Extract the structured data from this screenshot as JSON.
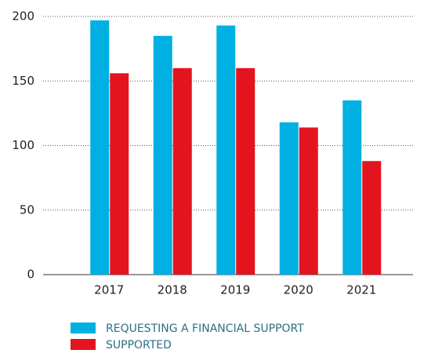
{
  "chart_data": {
    "type": "bar",
    "categories": [
      "2017",
      "2018",
      "2019",
      "2020",
      "2021"
    ],
    "series": [
      {
        "name": "REQUESTING A FINANCIAL SUPPORT",
        "color": "#00b0e2",
        "values": [
          197,
          185,
          193,
          118,
          135
        ]
      },
      {
        "name": "SUPPORTED",
        "color": "#e3141d",
        "values": [
          156,
          160,
          160,
          114,
          88
        ]
      }
    ],
    "ylim": [
      0,
      200
    ],
    "yticks": [
      0,
      50,
      100,
      150,
      200
    ],
    "grid": true
  }
}
